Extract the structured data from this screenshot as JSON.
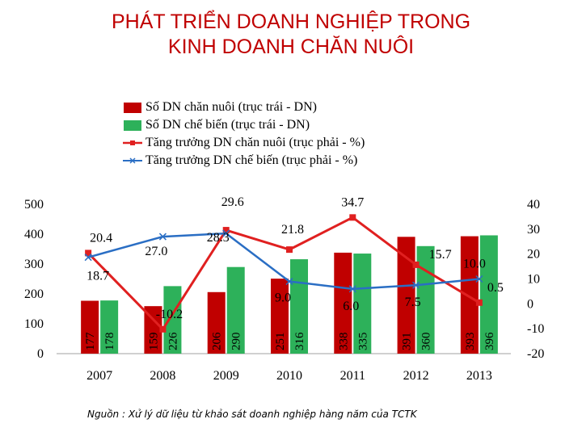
{
  "title_line1": "PHÁT TRIỂN DOANH NGHIỆP TRONG",
  "title_line2": "KINH DOANH CHĂN NUÔI",
  "source": "Nguồn : Xử lý dữ liệu từ khảo sát doanh nghiệp hàng năm của TCTK",
  "colors": {
    "title": "#c00000",
    "bar_livestock": "#c00000",
    "bar_processing": "#2db15a",
    "line_livestock": "#e02020",
    "line_processing": "#2a6ec4"
  },
  "chart_data": {
    "type": "bar",
    "categories": [
      "2007",
      "2008",
      "2009",
      "2010",
      "2011",
      "2012",
      "2013"
    ],
    "series": [
      {
        "name": "Số DN chăn nuôi (trục trái - DN)",
        "kind": "bar",
        "axis": "left",
        "values": [
          177,
          159,
          206,
          251,
          338,
          391,
          393
        ],
        "labels": [
          "177",
          "159",
          "206",
          "251",
          "338",
          "391",
          "393"
        ]
      },
      {
        "name": "Số DN chế biến (trục trái - DN)",
        "kind": "bar",
        "axis": "left",
        "values": [
          178,
          226,
          290,
          316,
          335,
          360,
          396
        ],
        "labels": [
          "178",
          "226",
          "290",
          "316",
          "335",
          "360",
          "396"
        ]
      },
      {
        "name": "Tăng trưởng DN chăn nuôi (trục phải - %)",
        "kind": "line",
        "axis": "right",
        "values": [
          null,
          -10.2,
          29.6,
          21.8,
          34.7,
          15.7,
          0.5
        ],
        "labels": [
          "",
          "-10.2",
          "29.6",
          "21.8",
          "34.7",
          "15.7",
          "0.5"
        ]
      },
      {
        "name": "Tăng trưởng DN chế biến (trục phải - %)",
        "kind": "line",
        "axis": "right",
        "values": [
          null,
          27.0,
          28.3,
          9.0,
          6.0,
          7.5,
          10.0
        ],
        "labels": [
          "",
          "27.0",
          "28.3",
          "9.0",
          "6.0",
          "7.5",
          "10.0"
        ]
      }
    ],
    "extra_labels": [
      "20.4",
      "18.7"
    ],
    "y_left": {
      "min": 0,
      "max": 500,
      "ticks": [
        "0",
        "100",
        "200",
        "300",
        "400",
        "500"
      ]
    },
    "y_right": {
      "min": -20,
      "max": 40,
      "ticks": [
        "-20",
        "-10",
        "0",
        "10",
        "20",
        "30",
        "40"
      ]
    },
    "legend_position": "top",
    "grid": false
  }
}
